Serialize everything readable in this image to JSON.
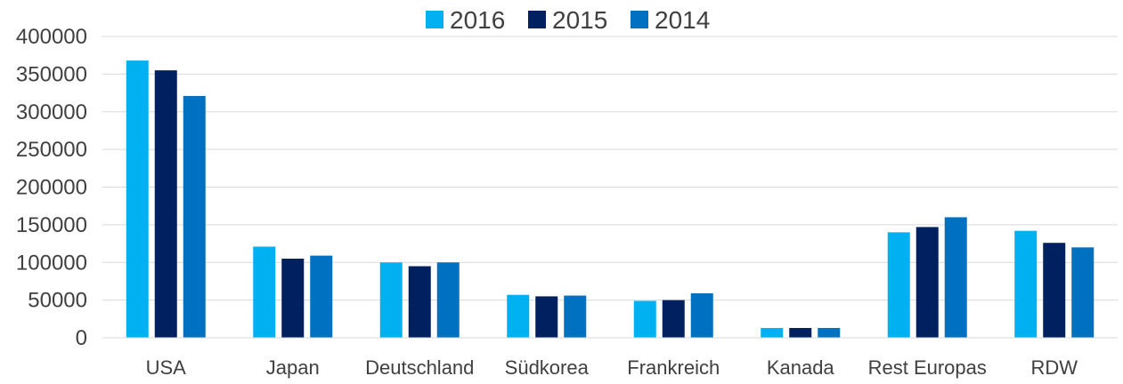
{
  "chart_data": {
    "type": "bar",
    "categories": [
      "USA",
      "Japan",
      "Deutschland",
      "Südkorea",
      "Frankreich",
      "Kanada",
      "Rest Europas",
      "RDW"
    ],
    "series": [
      {
        "name": "2016",
        "color": "#00b0f0",
        "values": [
          368000,
          121000,
          100000,
          57000,
          49000,
          13000,
          140000,
          142000
        ]
      },
      {
        "name": "2015",
        "color": "#002060",
        "values": [
          355000,
          105000,
          95000,
          55000,
          50000,
          13000,
          147000,
          126000
        ]
      },
      {
        "name": "2014",
        "color": "#0070c0",
        "values": [
          321000,
          109000,
          100000,
          56000,
          59000,
          13000,
          160000,
          120000
        ]
      }
    ],
    "yticks": [
      "0",
      "50000",
      "100000",
      "150000",
      "200000",
      "250000",
      "300000",
      "350000",
      "400000"
    ],
    "ylim": [
      0,
      400000
    ],
    "grid": true,
    "legend_position": "top-center"
  }
}
